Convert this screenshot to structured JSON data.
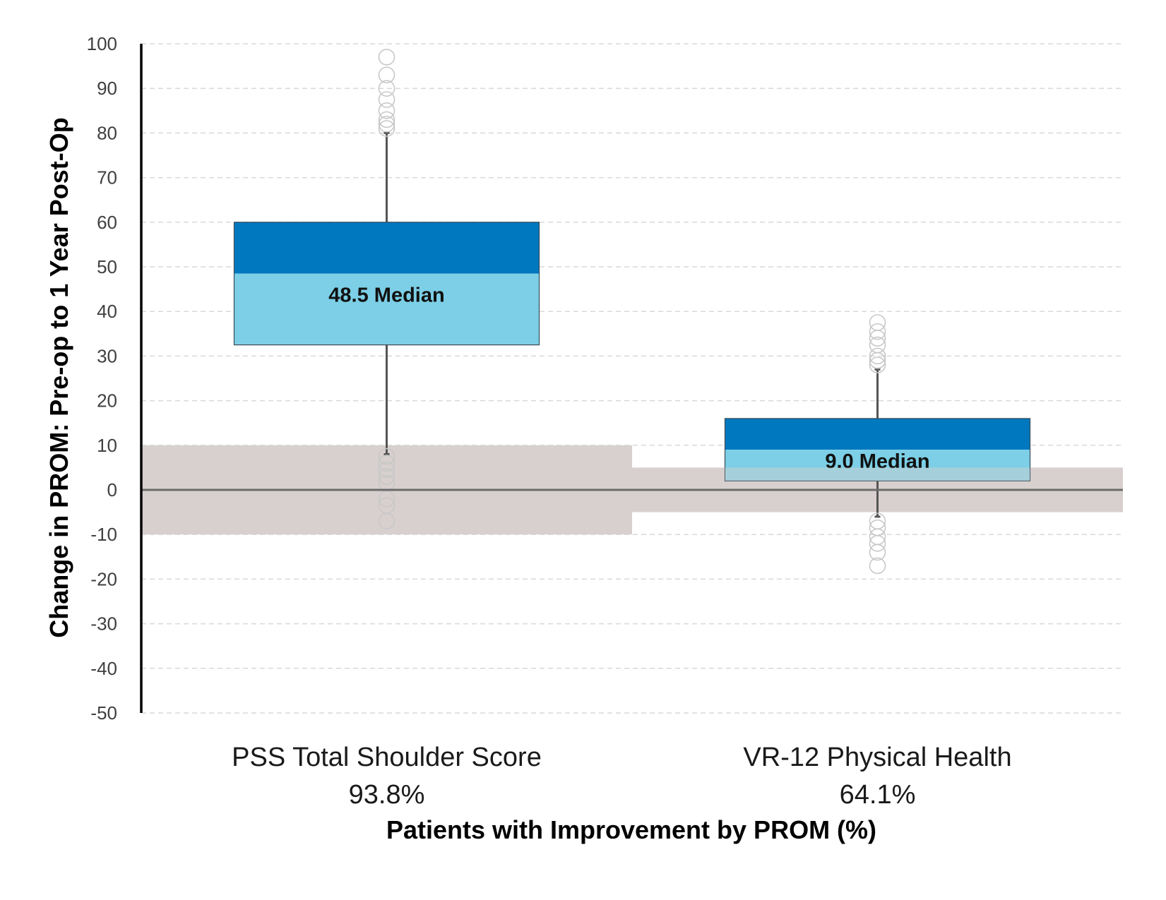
{
  "chart_data": {
    "type": "box",
    "ylabel": "Change in PROM: Pre-op to 1 Year Post-Op",
    "xlabel": "Patients with Improvement by PROM (%)",
    "ylim": [
      -50,
      100
    ],
    "yticks": [
      100,
      90,
      80,
      70,
      60,
      50,
      40,
      30,
      20,
      10,
      0,
      -10,
      -20,
      -30,
      -40,
      -50
    ],
    "grid": true,
    "boxes": [
      {
        "category": "PSS Total Shoulder Score",
        "percent": "93.8%",
        "whisker_low": 8,
        "q1": 32.5,
        "median": 48.5,
        "q3": 60,
        "whisker_high": 80,
        "median_label": "48.5 Median",
        "outliers": [
          97,
          93,
          90,
          87.5,
          85,
          83,
          82,
          81,
          7.5,
          6,
          4.5,
          3,
          1.5,
          -2,
          -3.5,
          -7
        ],
        "band": [
          -10,
          10
        ]
      },
      {
        "category": "VR-12 Physical Health",
        "percent": "64.1%",
        "whisker_low": -6,
        "q1": 2,
        "median": 9,
        "q3": 16,
        "whisker_high": 27,
        "median_label": "9.0 Median",
        "outliers": [
          37.5,
          35.5,
          34,
          32.5,
          30,
          29,
          28,
          -7,
          -8.5,
          -10.5,
          -12,
          -14,
          -17
        ],
        "band": [
          -5,
          5
        ]
      }
    ],
    "colors": {
      "upper_box": "#0078bf",
      "lower_box": "#7ccfe6",
      "band": "#d8d0cf",
      "whisker": "#555555",
      "zero_line": "#6b6b6b",
      "grid": "#d9d9d9",
      "outlier": "#c8c8c8"
    }
  }
}
